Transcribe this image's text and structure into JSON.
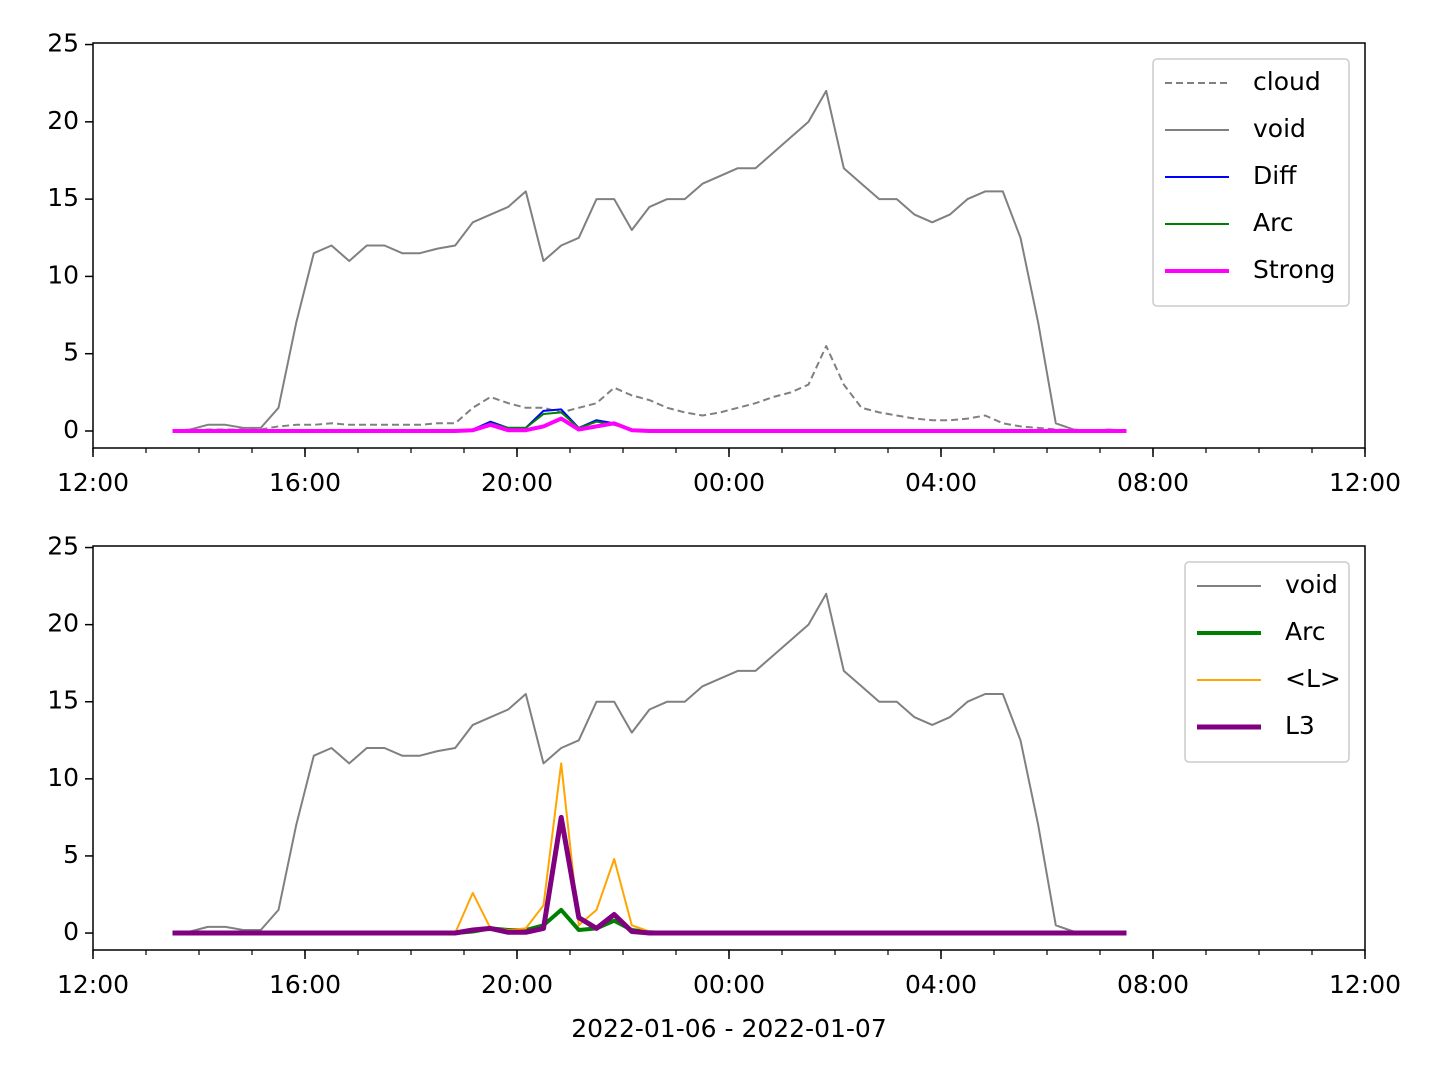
{
  "chart_data": [
    {
      "type": "line",
      "legend": "upper right",
      "ylim": [
        -1.1,
        25.1
      ],
      "yticks": [
        0,
        5,
        10,
        15,
        20,
        25
      ],
      "xlim": [
        "2022-01-06T12:00",
        "2022-01-07T12:00"
      ],
      "xticks": [
        {
          "value": "2022-01-06T12:00",
          "label": "12:00"
        },
        {
          "value": "2022-01-06T16:00",
          "label": "16:00"
        },
        {
          "value": "2022-01-06T20:00",
          "label": "20:00"
        },
        {
          "value": "2022-01-07T00:00",
          "label": "00:00"
        },
        {
          "value": "2022-01-07T04:00",
          "label": "04:00"
        },
        {
          "value": "2022-01-07T08:00",
          "label": "08:00"
        },
        {
          "value": "2022-01-07T12:00",
          "label": "12:00"
        }
      ],
      "x": [
        "2022-01-06T13:30",
        "2022-01-06T13:50",
        "2022-01-06T14:10",
        "2022-01-06T14:30",
        "2022-01-06T14:50",
        "2022-01-06T15:10",
        "2022-01-06T15:30",
        "2022-01-06T15:50",
        "2022-01-06T16:10",
        "2022-01-06T16:30",
        "2022-01-06T16:50",
        "2022-01-06T17:10",
        "2022-01-06T17:30",
        "2022-01-06T17:50",
        "2022-01-06T18:10",
        "2022-01-06T18:30",
        "2022-01-06T18:50",
        "2022-01-06T19:10",
        "2022-01-06T19:30",
        "2022-01-06T19:50",
        "2022-01-06T20:10",
        "2022-01-06T20:30",
        "2022-01-06T20:50",
        "2022-01-06T21:10",
        "2022-01-06T21:30",
        "2022-01-06T21:50",
        "2022-01-06T22:10",
        "2022-01-06T22:30",
        "2022-01-06T22:50",
        "2022-01-06T23:10",
        "2022-01-06T23:30",
        "2022-01-06T23:50",
        "2022-01-07T00:10",
        "2022-01-07T00:30",
        "2022-01-07T00:50",
        "2022-01-07T01:10",
        "2022-01-07T01:30",
        "2022-01-07T01:50",
        "2022-01-07T02:10",
        "2022-01-07T02:30",
        "2022-01-07T02:50",
        "2022-01-07T03:10",
        "2022-01-07T03:30",
        "2022-01-07T03:50",
        "2022-01-07T04:10",
        "2022-01-07T04:30",
        "2022-01-07T04:50",
        "2022-01-07T05:10",
        "2022-01-07T05:30",
        "2022-01-07T05:50",
        "2022-01-07T06:10",
        "2022-01-07T06:30",
        "2022-01-07T06:50",
        "2022-01-07T07:10",
        "2022-01-07T07:30"
      ],
      "series": [
        {
          "name": "cloud",
          "color": "#808080",
          "linestyle": "dashed",
          "linewidth": 2,
          "values": [
            0,
            0.05,
            0.1,
            0.1,
            0.1,
            0.1,
            0.3,
            0.4,
            0.4,
            0.5,
            0.4,
            0.4,
            0.4,
            0.4,
            0.4,
            0.5,
            0.5,
            1.5,
            2.2,
            1.8,
            1.5,
            1.5,
            1.2,
            1.5,
            1.8,
            2.8,
            2.3,
            2,
            1.5,
            1.2,
            1,
            1.2,
            1.5,
            1.8,
            2.2,
            2.5,
            3,
            5.5,
            3,
            1.5,
            1.2,
            1,
            0.8,
            0.7,
            0.7,
            0.8,
            1,
            0.5,
            0.3,
            0.2,
            0.1,
            0.05,
            0.05,
            0.05,
            0.05
          ]
        },
        {
          "name": "void",
          "color": "#808080",
          "linewidth": 2,
          "values": [
            0,
            0.1,
            0.4,
            0.4,
            0.2,
            0.2,
            1.5,
            7,
            11.5,
            12,
            11,
            12,
            12,
            11.5,
            11.5,
            11.8,
            12,
            13.5,
            14,
            14.5,
            15.5,
            11,
            12,
            12.5,
            15,
            15,
            13,
            14.5,
            15,
            15,
            16,
            16.5,
            17,
            17,
            18,
            19,
            20,
            22,
            17,
            16,
            15,
            15,
            14,
            13.5,
            14,
            15,
            15.5,
            15.5,
            12.5,
            7,
            0.5,
            0.1,
            0,
            0.1,
            0
          ]
        },
        {
          "name": "Diff",
          "color": "#0000ff",
          "linewidth": 2,
          "values": [
            0,
            0,
            0,
            0,
            0,
            0,
            0,
            0,
            0,
            0,
            0,
            0,
            0,
            0,
            0,
            0,
            0,
            0.1,
            0.6,
            0.2,
            0.2,
            1.3,
            1.4,
            0.2,
            0.7,
            0.5,
            0.1,
            0.05,
            0,
            0,
            0,
            0,
            0,
            0,
            0,
            0,
            0,
            0,
            0,
            0,
            0,
            0,
            0,
            0,
            0,
            0,
            0,
            0,
            0,
            0,
            0,
            0,
            0,
            0,
            0
          ]
        },
        {
          "name": "Arc",
          "color": "#008000",
          "linewidth": 2,
          "values": [
            0,
            0,
            0,
            0,
            0,
            0,
            0,
            0,
            0,
            0,
            0,
            0,
            0,
            0,
            0,
            0,
            0,
            0.1,
            0.5,
            0.2,
            0.2,
            1.1,
            1.2,
            0.2,
            0.6,
            0.4,
            0.1,
            0.05,
            0,
            0,
            0,
            0,
            0,
            0,
            0,
            0,
            0,
            0,
            0,
            0,
            0,
            0,
            0,
            0,
            0,
            0,
            0,
            0,
            0,
            0,
            0,
            0,
            0,
            0,
            0
          ]
        },
        {
          "name": "Strong",
          "color": "#ff00ff",
          "linewidth": 4,
          "values": [
            0,
            0,
            0,
            0,
            0,
            0,
            0,
            0,
            0,
            0,
            0,
            0,
            0,
            0,
            0,
            0,
            0,
            0.05,
            0.4,
            0.05,
            0.05,
            0.3,
            0.8,
            0.1,
            0.3,
            0.5,
            0.05,
            0,
            0,
            0,
            0,
            0,
            0,
            0,
            0,
            0,
            0,
            0,
            0,
            0,
            0,
            0,
            0,
            0,
            0,
            0,
            0,
            0,
            0,
            0,
            0,
            0,
            0,
            0,
            0
          ]
        }
      ]
    },
    {
      "type": "line",
      "legend": "upper right",
      "xlabel": "2022-01-06 - 2022-01-07",
      "ylim": [
        -1.1,
        25.1
      ],
      "yticks": [
        0,
        5,
        10,
        15,
        20,
        25
      ],
      "xlim": [
        "2022-01-06T12:00",
        "2022-01-07T12:00"
      ],
      "xticks": [
        {
          "value": "2022-01-06T12:00",
          "label": "12:00"
        },
        {
          "value": "2022-01-06T16:00",
          "label": "16:00"
        },
        {
          "value": "2022-01-06T20:00",
          "label": "20:00"
        },
        {
          "value": "2022-01-07T00:00",
          "label": "00:00"
        },
        {
          "value": "2022-01-07T04:00",
          "label": "04:00"
        },
        {
          "value": "2022-01-07T08:00",
          "label": "08:00"
        },
        {
          "value": "2022-01-07T12:00",
          "label": "12:00"
        }
      ],
      "x": [
        "2022-01-06T13:30",
        "2022-01-06T13:50",
        "2022-01-06T14:10",
        "2022-01-06T14:30",
        "2022-01-06T14:50",
        "2022-01-06T15:10",
        "2022-01-06T15:30",
        "2022-01-06T15:50",
        "2022-01-06T16:10",
        "2022-01-06T16:30",
        "2022-01-06T16:50",
        "2022-01-06T17:10",
        "2022-01-06T17:30",
        "2022-01-06T17:50",
        "2022-01-06T18:10",
        "2022-01-06T18:30",
        "2022-01-06T18:50",
        "2022-01-06T19:10",
        "2022-01-06T19:30",
        "2022-01-06T19:50",
        "2022-01-06T20:10",
        "2022-01-06T20:30",
        "2022-01-06T20:50",
        "2022-01-06T21:10",
        "2022-01-06T21:30",
        "2022-01-06T21:50",
        "2022-01-06T22:10",
        "2022-01-06T22:30",
        "2022-01-06T22:50",
        "2022-01-06T23:10",
        "2022-01-06T23:30",
        "2022-01-06T23:50",
        "2022-01-07T00:10",
        "2022-01-07T00:30",
        "2022-01-07T00:50",
        "2022-01-07T01:10",
        "2022-01-07T01:30",
        "2022-01-07T01:50",
        "2022-01-07T02:10",
        "2022-01-07T02:30",
        "2022-01-07T02:50",
        "2022-01-07T03:10",
        "2022-01-07T03:30",
        "2022-01-07T03:50",
        "2022-01-07T04:10",
        "2022-01-07T04:30",
        "2022-01-07T04:50",
        "2022-01-07T05:10",
        "2022-01-07T05:30",
        "2022-01-07T05:50",
        "2022-01-07T06:10",
        "2022-01-07T06:30",
        "2022-01-07T06:50",
        "2022-01-07T07:10",
        "2022-01-07T07:30"
      ],
      "series": [
        {
          "name": "void",
          "color": "#808080",
          "linewidth": 2,
          "values": [
            0,
            0.1,
            0.4,
            0.4,
            0.2,
            0.2,
            1.5,
            7,
            11.5,
            12,
            11,
            12,
            12,
            11.5,
            11.5,
            11.8,
            12,
            13.5,
            14,
            14.5,
            15.5,
            11,
            12,
            12.5,
            15,
            15,
            13,
            14.5,
            15,
            15,
            16,
            16.5,
            17,
            17,
            18,
            19,
            20,
            22,
            17,
            16,
            15,
            15,
            14,
            13.5,
            14,
            15,
            15.5,
            15.5,
            12.5,
            7,
            0.5,
            0.1,
            0,
            0.1,
            0
          ]
        },
        {
          "name": "Arc",
          "color": "#008000",
          "linewidth": 4,
          "values": [
            0,
            0,
            0,
            0,
            0,
            0,
            0,
            0,
            0,
            0,
            0,
            0,
            0,
            0,
            0,
            0,
            0,
            0.1,
            0.3,
            0.2,
            0.2,
            0.5,
            1.5,
            0.2,
            0.3,
            0.8,
            0.2,
            0.05,
            0,
            0,
            0,
            0,
            0,
            0,
            0,
            0,
            0,
            0,
            0,
            0,
            0,
            0,
            0,
            0,
            0,
            0,
            0,
            0,
            0,
            0,
            0,
            0,
            0,
            0,
            0
          ]
        },
        {
          "name": "<L>",
          "color": "#ffa500",
          "linewidth": 2,
          "values": [
            0,
            0,
            0,
            0,
            0,
            0,
            0,
            0,
            0,
            0,
            0,
            0,
            0,
            0,
            0,
            0,
            0,
            2.6,
            0.3,
            0.2,
            0.3,
            1.8,
            11,
            0.5,
            1.5,
            4.8,
            0.5,
            0.1,
            0,
            0,
            0,
            0,
            0,
            0,
            0,
            0,
            0,
            0,
            0,
            0,
            0,
            0,
            0,
            0,
            0,
            0,
            0,
            0,
            0,
            0,
            0,
            0,
            0,
            0,
            0
          ]
        },
        {
          "name": "L3",
          "color": "#800080",
          "linewidth": 5,
          "values": [
            0,
            0,
            0,
            0,
            0,
            0,
            0,
            0,
            0,
            0,
            0,
            0,
            0,
            0,
            0,
            0,
            0,
            0.2,
            0.3,
            0.05,
            0.05,
            0.3,
            7.5,
            1,
            0.3,
            1.2,
            0.1,
            0,
            0,
            0,
            0,
            0,
            0,
            0,
            0,
            0,
            0,
            0,
            0,
            0,
            0,
            0,
            0,
            0,
            0,
            0,
            0,
            0,
            0,
            0,
            0,
            0,
            0,
            0,
            0
          ]
        }
      ]
    }
  ]
}
